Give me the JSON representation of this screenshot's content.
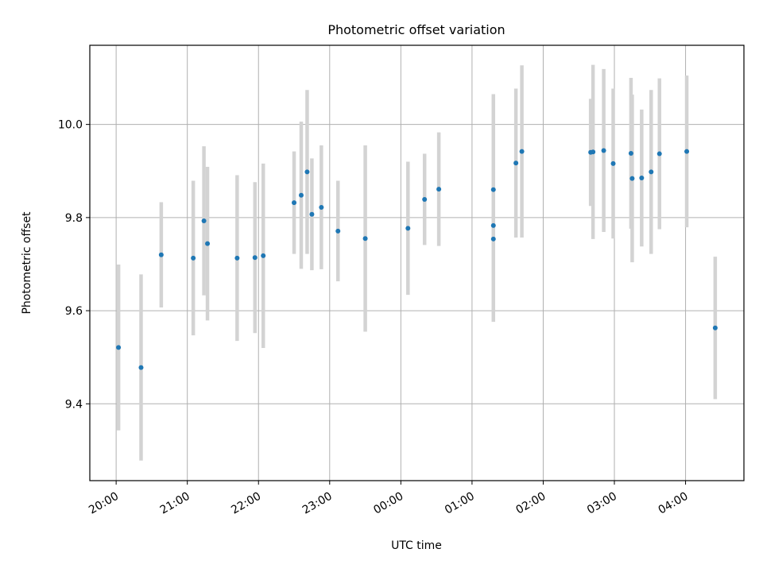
{
  "chart_data": {
    "type": "scatter",
    "title": "Photometric offset variation",
    "xlabel": "UTC time",
    "ylabel": "Photometric offset",
    "x_ticks": [
      "20:00",
      "21:00",
      "22:00",
      "23:00",
      "00:00",
      "01:00",
      "02:00",
      "03:00",
      "04:00"
    ],
    "y_ticks": [
      "9.4",
      "9.6",
      "9.8",
      "10.0"
    ],
    "x_range_hours": [
      19.63,
      28.82
    ],
    "ylim": [
      9.235,
      10.17
    ],
    "grid": true,
    "point_color": "#1f77b4",
    "errorbar_color": "#d3d3d3",
    "points": [
      {
        "time": "20:02",
        "value": 9.521,
        "err": 0.178
      },
      {
        "time": "20:21",
        "value": 9.478,
        "err": 0.2
      },
      {
        "time": "20:38",
        "value": 9.72,
        "err": 0.113
      },
      {
        "time": "21:05",
        "value": 9.713,
        "err": 0.166
      },
      {
        "time": "21:14",
        "value": 9.793,
        "err": 0.16
      },
      {
        "time": "21:17",
        "value": 9.744,
        "err": 0.165
      },
      {
        "time": "21:42",
        "value": 9.713,
        "err": 0.178
      },
      {
        "time": "21:57",
        "value": 9.714,
        "err": 0.162
      },
      {
        "time": "22:04",
        "value": 9.718,
        "err": 0.198
      },
      {
        "time": "22:30",
        "value": 9.832,
        "err": 0.11
      },
      {
        "time": "22:36",
        "value": 9.848,
        "err": 0.158
      },
      {
        "time": "22:41",
        "value": 9.898,
        "err": 0.176
      },
      {
        "time": "22:45",
        "value": 9.807,
        "err": 0.12
      },
      {
        "time": "22:53",
        "value": 9.822,
        "err": 0.133
      },
      {
        "time": "23:07",
        "value": 9.771,
        "err": 0.108
      },
      {
        "time": "23:30",
        "value": 9.755,
        "err": 0.2
      },
      {
        "time": "00:06",
        "value": 9.777,
        "err": 0.143
      },
      {
        "time": "00:20",
        "value": 9.839,
        "err": 0.098
      },
      {
        "time": "00:32",
        "value": 9.861,
        "err": 0.122
      },
      {
        "time": "01:18",
        "value": 9.86,
        "err": 0.205
      },
      {
        "time": "01:18",
        "value": 9.783,
        "err": 0.2
      },
      {
        "time": "01:18",
        "value": 9.754,
        "err": 0.178
      },
      {
        "time": "01:37",
        "value": 9.917,
        "err": 0.16
      },
      {
        "time": "01:42",
        "value": 9.942,
        "err": 0.185
      },
      {
        "time": "02:40",
        "value": 9.94,
        "err": 0.115
      },
      {
        "time": "02:42",
        "value": 9.941,
        "err": 0.187
      },
      {
        "time": "02:51",
        "value": 9.944,
        "err": 0.175
      },
      {
        "time": "02:59",
        "value": 9.916,
        "err": 0.161
      },
      {
        "time": "03:14",
        "value": 9.938,
        "err": 0.162
      },
      {
        "time": "03:15",
        "value": 9.884,
        "err": 0.18
      },
      {
        "time": "03:23",
        "value": 9.885,
        "err": 0.147
      },
      {
        "time": "03:31",
        "value": 9.898,
        "err": 0.176
      },
      {
        "time": "03:38",
        "value": 9.937,
        "err": 0.162
      },
      {
        "time": "04:01",
        "value": 9.942,
        "err": 0.163
      },
      {
        "time": "04:25",
        "value": 9.563,
        "err": 0.153
      }
    ]
  }
}
